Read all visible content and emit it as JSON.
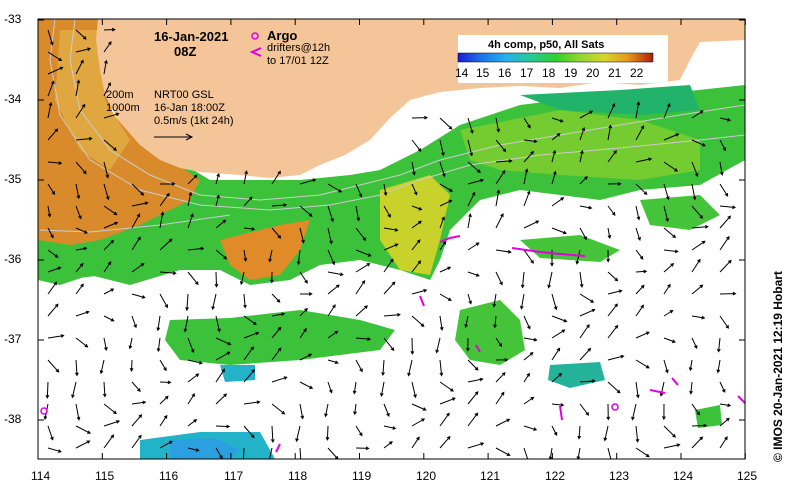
{
  "map": {
    "date": "16-Jan-2021",
    "time": "08Z",
    "legend_argo": "Argo",
    "legend_drifters_1": "drifters@12h",
    "legend_drifters_2": "to 17/01 12Z",
    "contour_200": "200m",
    "contour_1000": "1000m",
    "current_product": "NRT00 GSL",
    "current_date": "16-Jan 18:00Z",
    "scale_label": "0.5m/s (1kt 24h)",
    "colorbar_title": "4h comp, p50, All Sats",
    "colorbar_ticks": [
      "14",
      "15",
      "16",
      "17",
      "18",
      "19",
      "20",
      "21",
      "22"
    ],
    "colorbar_colors": [
      "#1a1ad9",
      "#1e73e6",
      "#22b3e6",
      "#22cc99",
      "#33cc33",
      "#8fd62e",
      "#d6d62a",
      "#e69a1a",
      "#d94d12",
      "#a81f0f"
    ],
    "credit": "© IMOS 20-Jan-2021 12:19 Hobart",
    "lat_ticks": [
      "-33",
      "-34",
      "-35",
      "-36",
      "-37",
      "-38"
    ],
    "lon_ticks": [
      "114",
      "115",
      "116",
      "117",
      "118",
      "119",
      "120",
      "121",
      "122",
      "123",
      "124",
      "125"
    ],
    "land_color": "#f5c59a"
  }
}
